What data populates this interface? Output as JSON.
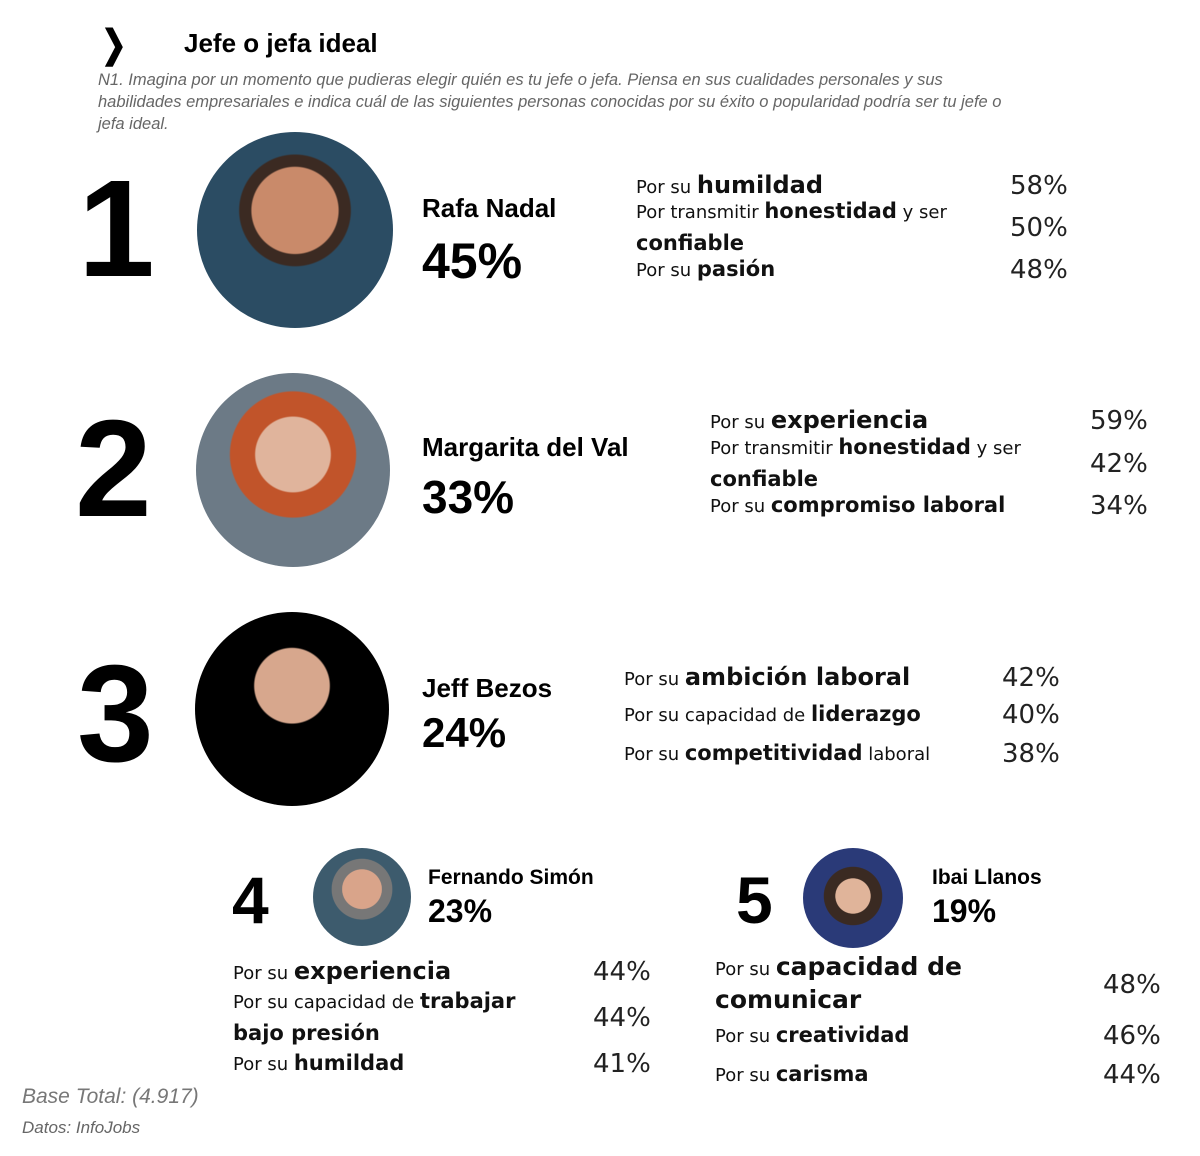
{
  "header": {
    "chevron_icon": "chevron-right-icon",
    "title": "Jefe o jefa ideal",
    "question": "N1. Imagina por un momento que pudieras elegir quién es tu jefe o jefa. Piensa en sus cualidades personales y sus habilidades empresariales e indica cuál de las siguientes personas conocidas por su éxito o popularidad podría ser tu jefe o jefa ideal."
  },
  "ranking": [
    {
      "rank": "1",
      "name": "Rafa Nadal",
      "percent": "45%",
      "reasons": [
        {
          "segments": [
            {
              "text": "Por su ",
              "bold": false
            },
            {
              "text": "humildad",
              "bold": true
            }
          ],
          "percent": "58%"
        },
        {
          "segments": [
            {
              "text": "Por transmitir ",
              "bold": false
            },
            {
              "text": "honestidad",
              "bold": true
            },
            {
              "text": " y ser ",
              "bold": false
            },
            {
              "text": "confiable",
              "bold": true
            }
          ],
          "percent": "50%"
        },
        {
          "segments": [
            {
              "text": "Por su ",
              "bold": false
            },
            {
              "text": "pasión",
              "bold": true
            }
          ],
          "percent": "48%"
        }
      ]
    },
    {
      "rank": "2",
      "name": "Margarita del Val",
      "percent": "33%",
      "reasons": [
        {
          "segments": [
            {
              "text": "Por su ",
              "bold": false
            },
            {
              "text": "experiencia",
              "bold": true
            }
          ],
          "percent": "59%"
        },
        {
          "segments": [
            {
              "text": "Por transmitir ",
              "bold": false
            },
            {
              "text": "honestidad",
              "bold": true
            },
            {
              "text": " y ser ",
              "bold": false
            },
            {
              "text": "confiable",
              "bold": true
            }
          ],
          "percent": "42%"
        },
        {
          "segments": [
            {
              "text": "Por su ",
              "bold": false
            },
            {
              "text": "compromiso laboral",
              "bold": true
            }
          ],
          "percent": "34%"
        }
      ]
    },
    {
      "rank": "3",
      "name": "Jeff Bezos",
      "percent": "24%",
      "reasons": [
        {
          "segments": [
            {
              "text": "Por su ",
              "bold": false
            },
            {
              "text": "ambición laboral",
              "bold": true
            }
          ],
          "percent": "42%"
        },
        {
          "segments": [
            {
              "text": "Por su capacidad de ",
              "bold": false
            },
            {
              "text": "liderazgo",
              "bold": true
            }
          ],
          "percent": "40%"
        },
        {
          "segments": [
            {
              "text": "Por su ",
              "bold": false
            },
            {
              "text": "competitividad",
              "bold": true
            },
            {
              "text": " laboral",
              "bold": false
            }
          ],
          "percent": "38%"
        }
      ]
    },
    {
      "rank": "4",
      "name": "Fernando Simón",
      "percent": "23%",
      "reasons": [
        {
          "segments": [
            {
              "text": "Por su ",
              "bold": false
            },
            {
              "text": "experiencia",
              "bold": true
            }
          ],
          "percent": "44%"
        },
        {
          "segments": [
            {
              "text": "Por su capacidad de ",
              "bold": false
            },
            {
              "text": "trabajar bajo presión",
              "bold": true
            }
          ],
          "percent": "44%"
        },
        {
          "segments": [
            {
              "text": "Por su ",
              "bold": false
            },
            {
              "text": "humildad",
              "bold": true
            }
          ],
          "percent": "41%"
        }
      ]
    },
    {
      "rank": "5",
      "name": "Ibai Llanos",
      "percent": "19%",
      "reasons": [
        {
          "segments": [
            {
              "text": "Por su ",
              "bold": false
            },
            {
              "text": "capacidad de comunicar",
              "bold": true
            }
          ],
          "percent": "48%"
        },
        {
          "segments": [
            {
              "text": "Por su ",
              "bold": false
            },
            {
              "text": "creatividad",
              "bold": true
            }
          ],
          "percent": "46%"
        },
        {
          "segments": [
            {
              "text": "Por su ",
              "bold": false
            },
            {
              "text": "carisma",
              "bold": true
            }
          ],
          "percent": "44%"
        }
      ]
    }
  ],
  "footer": {
    "base": "Base Total: (4.917)",
    "source": "Datos: InfoJobs"
  }
}
